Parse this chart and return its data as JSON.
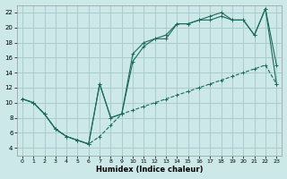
{
  "background_color": "#cce8e8",
  "grid_color": "#aacccc",
  "line_color": "#1a6b5a",
  "xlabel": "Humidex (Indice chaleur)",
  "xlim": [
    -0.5,
    23.5
  ],
  "ylim": [
    3,
    23
  ],
  "xticks": [
    0,
    1,
    2,
    3,
    4,
    5,
    6,
    7,
    8,
    9,
    10,
    11,
    12,
    13,
    14,
    15,
    16,
    17,
    18,
    19,
    20,
    21,
    22,
    23
  ],
  "yticks": [
    4,
    6,
    8,
    10,
    12,
    14,
    16,
    18,
    20,
    22
  ],
  "line1_x": [
    0,
    1,
    2,
    3,
    4,
    5,
    6,
    7,
    8,
    9,
    10,
    11,
    12,
    13,
    14,
    15,
    16,
    17,
    18,
    19,
    20,
    21,
    22,
    23
  ],
  "line1_y": [
    10.5,
    10,
    8.5,
    6.5,
    5.5,
    5,
    4.5,
    5.5,
    7.0,
    8.5,
    9.0,
    9.5,
    10.0,
    10.5,
    11.0,
    11.5,
    12.0,
    12.5,
    13.0,
    13.5,
    14.0,
    14.5,
    15.0,
    12.5
  ],
  "line2_x": [
    0,
    1,
    2,
    3,
    4,
    5,
    6,
    7,
    8,
    9,
    10,
    11,
    12,
    13,
    14,
    15,
    16,
    17,
    18,
    19,
    20,
    21,
    22,
    23
  ],
  "line2_y": [
    10.5,
    10,
    8.5,
    6.5,
    5.5,
    5,
    4.5,
    12.5,
    8.0,
    8.5,
    16.5,
    18.0,
    18.5,
    19.0,
    20.5,
    20.5,
    21.0,
    21.5,
    22.0,
    21.0,
    21.0,
    19.0,
    22.5,
    15.0
  ],
  "line3_x": [
    0,
    1,
    2,
    3,
    4,
    5,
    6,
    7,
    8,
    9,
    10,
    11,
    12,
    13,
    14,
    15,
    16,
    17,
    18,
    19,
    20,
    21,
    22,
    23
  ],
  "line3_y": [
    10.5,
    10,
    8.5,
    6.5,
    5.5,
    5,
    4.5,
    12.5,
    8.0,
    8.5,
    15.5,
    17.5,
    18.5,
    18.5,
    20.5,
    20.5,
    21.0,
    21.0,
    21.5,
    21.0,
    21.0,
    19.0,
    22.5,
    12.5
  ]
}
